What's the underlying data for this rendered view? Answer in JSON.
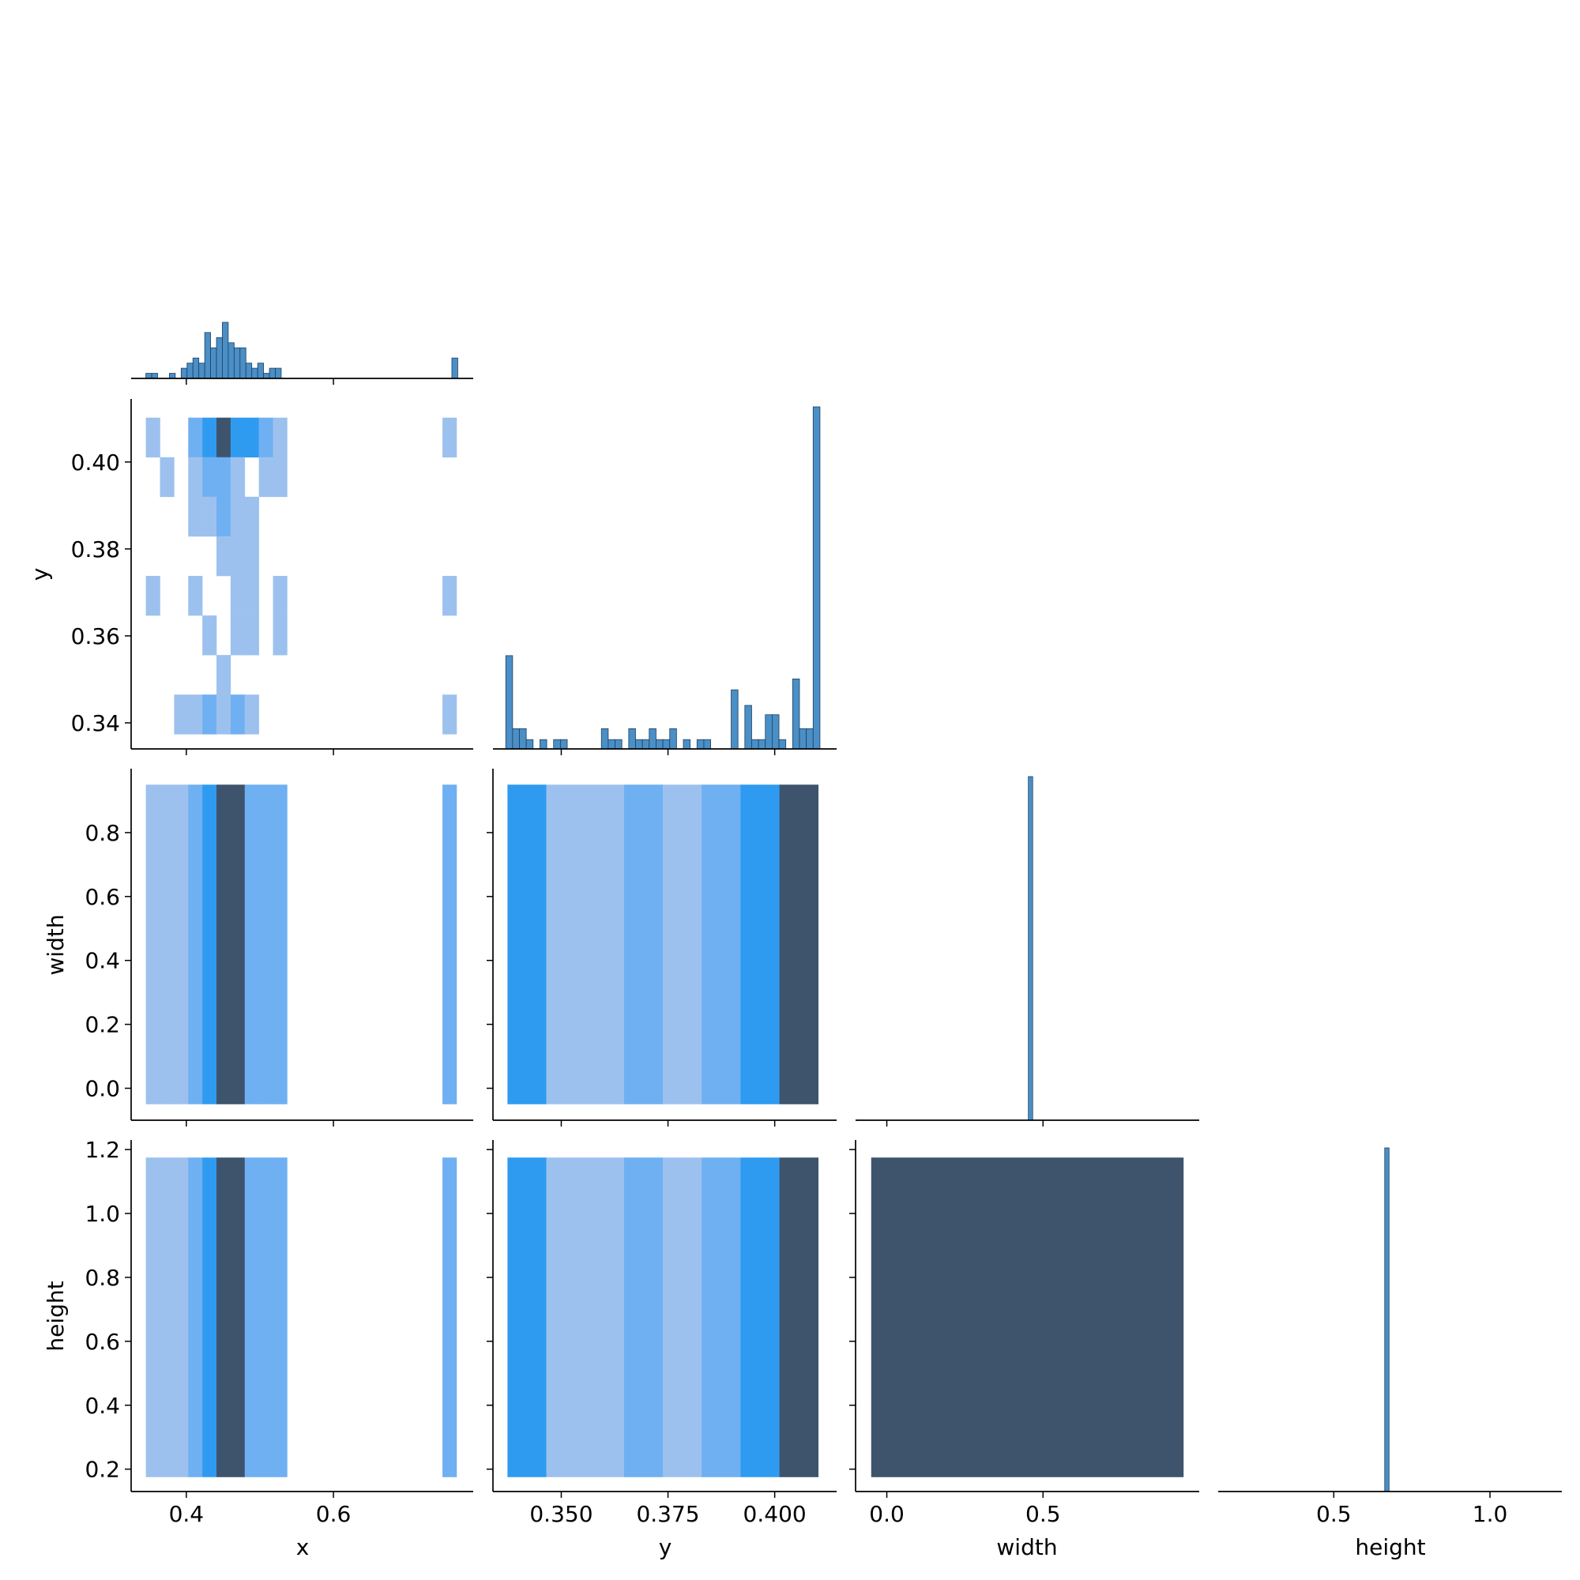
{
  "chart_data": {
    "type": "pairplot",
    "subtype": "corner pairplot: histograms on diagonal, 2D histograms below diagonal",
    "variables": [
      "x",
      "y",
      "width",
      "height"
    ],
    "colors": {
      "hist_bar": "#4a8fc6",
      "hist_edge": "#1f3f5f",
      "density_low": "#9dc1ee",
      "density_mid": "#6fb0f2",
      "density_high": "#2f9bf0",
      "density_peak": "#3e546d"
    },
    "axes": {
      "x": {
        "label": "x",
        "range": [
          0.325,
          0.79
        ],
        "ticks": [
          0.4,
          0.6
        ],
        "tick_labels": [
          "0.4",
          "0.6"
        ]
      },
      "y": {
        "label": "y",
        "range": [
          0.334,
          0.4145
        ],
        "ticks_vertical": [
          0.34,
          0.36,
          0.38,
          0.4
        ],
        "tick_labels_vertical": [
          "0.34",
          "0.36",
          "0.38",
          "0.40"
        ],
        "ticks_horizontal": [
          0.35,
          0.375,
          0.4
        ],
        "tick_labels_horizontal": [
          "0.350",
          "0.375",
          "0.400"
        ]
      },
      "width": {
        "label": "width",
        "range": [
          -0.1,
          1.0
        ],
        "ticks_vertical": [
          0.0,
          0.2,
          0.4,
          0.6,
          0.8
        ],
        "tick_labels_vertical": [
          "0.0",
          "0.2",
          "0.4",
          "0.6",
          "0.8"
        ],
        "ticks_horizontal": [
          0.0,
          0.5
        ],
        "tick_labels_horizontal": [
          "0.0",
          "0.5"
        ]
      },
      "height": {
        "label": "height",
        "range": [
          0.13,
          1.23
        ],
        "ticks_vertical": [
          0.2,
          0.4,
          0.6,
          0.8,
          1.0,
          1.2
        ],
        "tick_labels_vertical": [
          "0.2",
          "0.4",
          "0.6",
          "0.8",
          "1.0",
          "1.2"
        ],
        "ticks_horizontal": [
          0.5,
          1.0
        ],
        "tick_labels_horizontal": [
          "0.5",
          "1.0"
        ]
      }
    },
    "diagonal_histograms": [
      {
        "variable": "x",
        "bin_width": 0.008,
        "bins": [
          {
            "x0": 0.345,
            "count": 1
          },
          {
            "x0": 0.353,
            "count": 1
          },
          {
            "x0": 0.377,
            "count": 1
          },
          {
            "x0": 0.393,
            "count": 2
          },
          {
            "x0": 0.401,
            "count": 3
          },
          {
            "x0": 0.409,
            "count": 4
          },
          {
            "x0": 0.417,
            "count": 3
          },
          {
            "x0": 0.425,
            "count": 9
          },
          {
            "x0": 0.433,
            "count": 6
          },
          {
            "x0": 0.441,
            "count": 8
          },
          {
            "x0": 0.449,
            "count": 11
          },
          {
            "x0": 0.457,
            "count": 7
          },
          {
            "x0": 0.465,
            "count": 6
          },
          {
            "x0": 0.473,
            "count": 6
          },
          {
            "x0": 0.481,
            "count": 3
          },
          {
            "x0": 0.489,
            "count": 2
          },
          {
            "x0": 0.497,
            "count": 3
          },
          {
            "x0": 0.505,
            "count": 1
          },
          {
            "x0": 0.513,
            "count": 2
          },
          {
            "x0": 0.521,
            "count": 2
          },
          {
            "x0": 0.761,
            "count": 4
          }
        ]
      },
      {
        "variable": "y",
        "bin_width": 0.0016,
        "bins": [
          {
            "x0": 0.337,
            "count": 6
          },
          {
            "x0": 0.3386,
            "count": 1.3
          },
          {
            "x0": 0.3402,
            "count": 1.3
          },
          {
            "x0": 0.3418,
            "count": 0.6
          },
          {
            "x0": 0.345,
            "count": 0.6
          },
          {
            "x0": 0.3482,
            "count": 0.6
          },
          {
            "x0": 0.3498,
            "count": 0.6
          },
          {
            "x0": 0.3594,
            "count": 1.3
          },
          {
            "x0": 0.361,
            "count": 0.6
          },
          {
            "x0": 0.3626,
            "count": 0.6
          },
          {
            "x0": 0.3658,
            "count": 1.3
          },
          {
            "x0": 0.3674,
            "count": 0.6
          },
          {
            "x0": 0.369,
            "count": 0.6
          },
          {
            "x0": 0.3706,
            "count": 1.3
          },
          {
            "x0": 0.3722,
            "count": 0.6
          },
          {
            "x0": 0.3738,
            "count": 0.6
          },
          {
            "x0": 0.3754,
            "count": 1.3
          },
          {
            "x0": 0.3786,
            "count": 0.6
          },
          {
            "x0": 0.3818,
            "count": 0.6
          },
          {
            "x0": 0.3834,
            "count": 0.6
          },
          {
            "x0": 0.3898,
            "count": 3.8
          },
          {
            "x0": 0.393,
            "count": 2.8
          },
          {
            "x0": 0.3946,
            "count": 0.6
          },
          {
            "x0": 0.3962,
            "count": 0.6
          },
          {
            "x0": 0.3978,
            "count": 2.2
          },
          {
            "x0": 0.3994,
            "count": 2.2
          },
          {
            "x0": 0.401,
            "count": 0.6
          },
          {
            "x0": 0.4042,
            "count": 4.5
          },
          {
            "x0": 0.4058,
            "count": 1.3
          },
          {
            "x0": 0.4074,
            "count": 1.3
          },
          {
            "x0": 0.409,
            "count": 22
          }
        ]
      },
      {
        "variable": "width",
        "bin_width": 0.014,
        "bins": [
          {
            "x0": 0.453,
            "count": 100
          }
        ]
      },
      {
        "variable": "height",
        "bin_width": 0.014,
        "bins": [
          {
            "x0": 0.663,
            "count": 100
          }
        ]
      }
    ],
    "x_bin_edges": [
      0.345,
      0.3642,
      0.3834,
      0.4026,
      0.4218,
      0.441,
      0.4602,
      0.4794,
      0.4986,
      0.5178,
      0.537,
      0.7482,
      0.7674
    ],
    "y_bin_edges": [
      0.3374,
      0.3465,
      0.3556,
      0.3647,
      0.3738,
      0.3829,
      0.392,
      0.4011,
      0.4102
    ],
    "width_extent": [
      -0.05,
      0.95
    ],
    "height_extent": [
      0.175,
      1.175
    ],
    "x_y_cells": [
      {
        "xi": 0,
        "yi": 7,
        "level": 1
      },
      {
        "xi": 3,
        "yi": 7,
        "level": 2
      },
      {
        "xi": 4,
        "yi": 7,
        "level": 3
      },
      {
        "xi": 5,
        "yi": 7,
        "level": 4
      },
      {
        "xi": 6,
        "yi": 7,
        "level": 3
      },
      {
        "xi": 7,
        "yi": 7,
        "level": 3
      },
      {
        "xi": 8,
        "yi": 7,
        "level": 2
      },
      {
        "xi": 9,
        "yi": 7,
        "level": 1
      },
      {
        "xi": 11,
        "yi": 7,
        "level": 1
      },
      {
        "xi": 1,
        "yi": 6,
        "level": 1
      },
      {
        "xi": 3,
        "yi": 6,
        "level": 1
      },
      {
        "xi": 4,
        "yi": 6,
        "level": 2
      },
      {
        "xi": 5,
        "yi": 6,
        "level": 2
      },
      {
        "xi": 6,
        "yi": 6,
        "level": 1
      },
      {
        "xi": 8,
        "yi": 6,
        "level": 1
      },
      {
        "xi": 9,
        "yi": 6,
        "level": 1
      },
      {
        "xi": 3,
        "yi": 5,
        "level": 1
      },
      {
        "xi": 4,
        "yi": 5,
        "level": 1
      },
      {
        "xi": 5,
        "yi": 5,
        "level": 2
      },
      {
        "xi": 6,
        "yi": 5,
        "level": 1
      },
      {
        "xi": 7,
        "yi": 5,
        "level": 1
      },
      {
        "xi": 5,
        "yi": 4,
        "level": 1
      },
      {
        "xi": 6,
        "yi": 4,
        "level": 1
      },
      {
        "xi": 7,
        "yi": 4,
        "level": 1
      },
      {
        "xi": 0,
        "yi": 3,
        "level": 1
      },
      {
        "xi": 3,
        "yi": 3,
        "level": 1
      },
      {
        "xi": 6,
        "yi": 3,
        "level": 1
      },
      {
        "xi": 7,
        "yi": 3,
        "level": 1
      },
      {
        "xi": 9,
        "yi": 3,
        "level": 1
      },
      {
        "xi": 11,
        "yi": 3,
        "level": 1
      },
      {
        "xi": 4,
        "yi": 2,
        "level": 1
      },
      {
        "xi": 6,
        "yi": 2,
        "level": 1
      },
      {
        "xi": 7,
        "yi": 2,
        "level": 1
      },
      {
        "xi": 9,
        "yi": 2,
        "level": 1
      },
      {
        "xi": 5,
        "yi": 1,
        "level": 1
      },
      {
        "xi": 2,
        "yi": 0,
        "level": 1
      },
      {
        "xi": 3,
        "yi": 0,
        "level": 1
      },
      {
        "xi": 4,
        "yi": 0,
        "level": 2
      },
      {
        "xi": 5,
        "yi": 0,
        "level": 1
      },
      {
        "xi": 6,
        "yi": 0,
        "level": 2
      },
      {
        "xi": 7,
        "yi": 0,
        "level": 1
      },
      {
        "xi": 11,
        "yi": 0,
        "level": 1
      }
    ],
    "x_strip_levels": [
      1,
      1,
      1,
      2,
      3,
      4,
      4,
      2,
      2,
      2,
      0,
      2
    ],
    "y_strip_levels": [
      3,
      1,
      1,
      2,
      1,
      2,
      3,
      4
    ],
    "width_height_level": 4
  }
}
